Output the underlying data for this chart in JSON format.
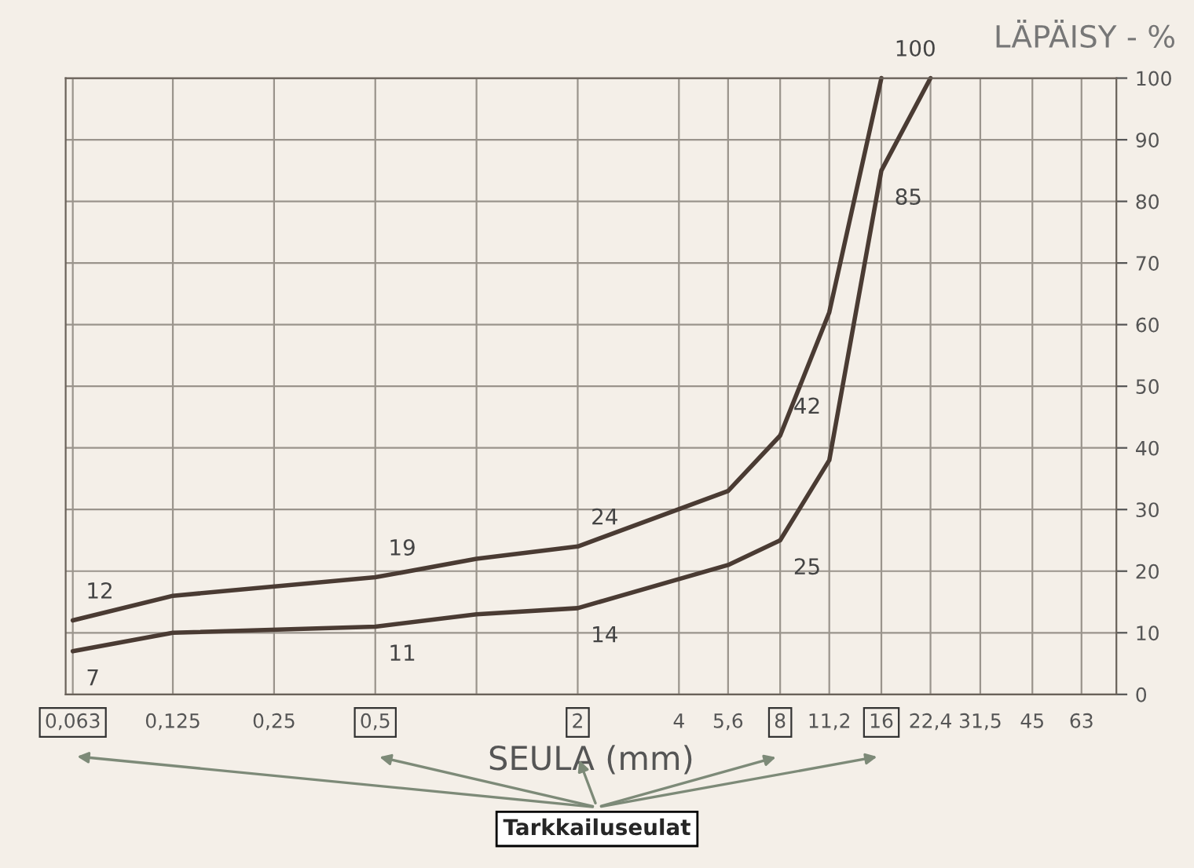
{
  "chart_data": {
    "type": "line",
    "title": "LÄPÄISY - %",
    "xlabel": "SEULA (mm)",
    "log": "x",
    "xlim": [
      0.06,
      80
    ],
    "ylim": [
      0,
      100
    ],
    "xticks": [
      {
        "value": 0.063,
        "label": "0,063"
      },
      {
        "value": 0.125,
        "label": "0,125"
      },
      {
        "value": 0.25,
        "label": "0,25"
      },
      {
        "value": 0.5,
        "label": "0,5"
      },
      {
        "value": 1,
        "label": null
      },
      {
        "value": 2,
        "label": "2"
      },
      {
        "value": 4,
        "label": "4"
      },
      {
        "value": 5.6,
        "label": "5,6"
      },
      {
        "value": 8,
        "label": "8"
      },
      {
        "value": 11.2,
        "label": "11,2"
      },
      {
        "value": 16,
        "label": "16"
      },
      {
        "value": 22.4,
        "label": "22,4"
      },
      {
        "value": 31.5,
        "label": "31,5"
      },
      {
        "value": 45,
        "label": "45"
      },
      {
        "value": 63,
        "label": "63"
      }
    ],
    "yticks": [
      0,
      10,
      20,
      30,
      40,
      50,
      60,
      70,
      80,
      90,
      100
    ],
    "grid": true,
    "marker": "none",
    "line_style": "solid",
    "series": [
      {
        "color": "#4a3b33",
        "x": [
          0.063,
          0.125,
          0.5,
          1,
          2,
          5.6,
          8,
          11.2,
          16
        ],
        "values": [
          12,
          16,
          19,
          22,
          24,
          33,
          42,
          62,
          100
        ],
        "value_labels": [
          "12",
          null,
          "19",
          null,
          "24",
          null,
          "42",
          null,
          "100"
        ]
      },
      {
        "color": "#4a3b33",
        "x": [
          0.063,
          0.125,
          0.5,
          1,
          2,
          5.6,
          8,
          11.2,
          16,
          22.4
        ],
        "values": [
          7,
          10,
          11,
          13,
          14,
          21,
          25,
          38,
          85,
          100
        ],
        "value_labels": [
          "7",
          null,
          "11",
          null,
          "14",
          null,
          "25",
          null,
          "85",
          null
        ]
      }
    ],
    "annotations": [
      "Tarkkailuseulat"
    ]
  }
}
